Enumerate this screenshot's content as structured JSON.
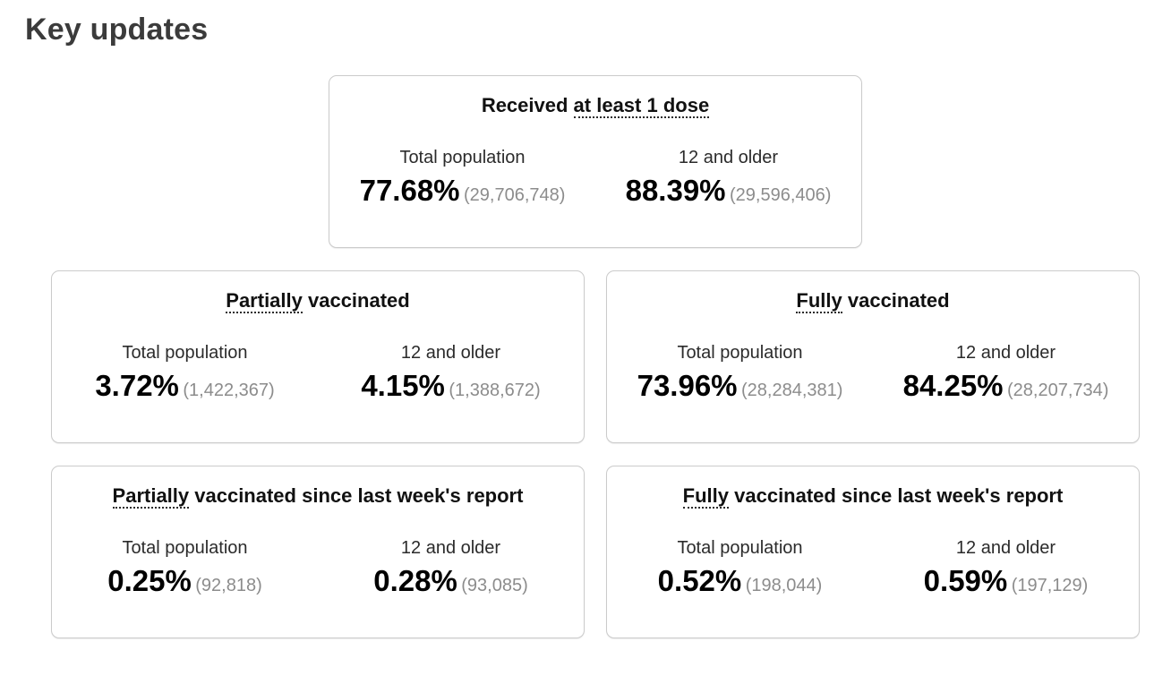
{
  "page": {
    "title": "Key updates"
  },
  "colors": {
    "heading_text": "#3b3b3b",
    "card_border": "#cbcbcb",
    "title_text": "#111111",
    "percent_text": "#000000",
    "count_text": "#8c8c8c",
    "dotted_underline": "#2b2b2b",
    "background": "#ffffff"
  },
  "cards": [
    {
      "id": "received-at-least-1-dose",
      "title": {
        "prefix": "Received ",
        "term": "at least 1 dose",
        "suffix": ""
      },
      "columns": [
        {
          "label": "Total population",
          "percent": "77.68%",
          "count": "(29,706,748)"
        },
        {
          "label": "12 and older",
          "percent": "88.39%",
          "count": "(29,596,406)"
        }
      ]
    },
    {
      "id": "partially-vaccinated",
      "title": {
        "prefix": "",
        "term": "Partially",
        "suffix": " vaccinated"
      },
      "columns": [
        {
          "label": "Total population",
          "percent": "3.72%",
          "count": "(1,422,367)"
        },
        {
          "label": "12 and older",
          "percent": "4.15%",
          "count": "(1,388,672)"
        }
      ]
    },
    {
      "id": "fully-vaccinated",
      "title": {
        "prefix": "",
        "term": "Fully",
        "suffix": " vaccinated"
      },
      "columns": [
        {
          "label": "Total population",
          "percent": "73.96%",
          "count": "(28,284,381)"
        },
        {
          "label": "12 and older",
          "percent": "84.25%",
          "count": "(28,207,734)"
        }
      ]
    },
    {
      "id": "partially-vaccinated-since-last-week",
      "title": {
        "prefix": "",
        "term": "Partially",
        "suffix": " vaccinated since last week's report"
      },
      "columns": [
        {
          "label": "Total population",
          "percent": "0.25%",
          "count": "(92,818)"
        },
        {
          "label": "12 and older",
          "percent": "0.28%",
          "count": "(93,085)"
        }
      ]
    },
    {
      "id": "fully-vaccinated-since-last-week",
      "title": {
        "prefix": "",
        "term": "Fully",
        "suffix": " vaccinated since last week's report"
      },
      "columns": [
        {
          "label": "Total population",
          "percent": "0.52%",
          "count": "(198,044)"
        },
        {
          "label": "12 and older",
          "percent": "0.59%",
          "count": "(197,129)"
        }
      ]
    }
  ]
}
